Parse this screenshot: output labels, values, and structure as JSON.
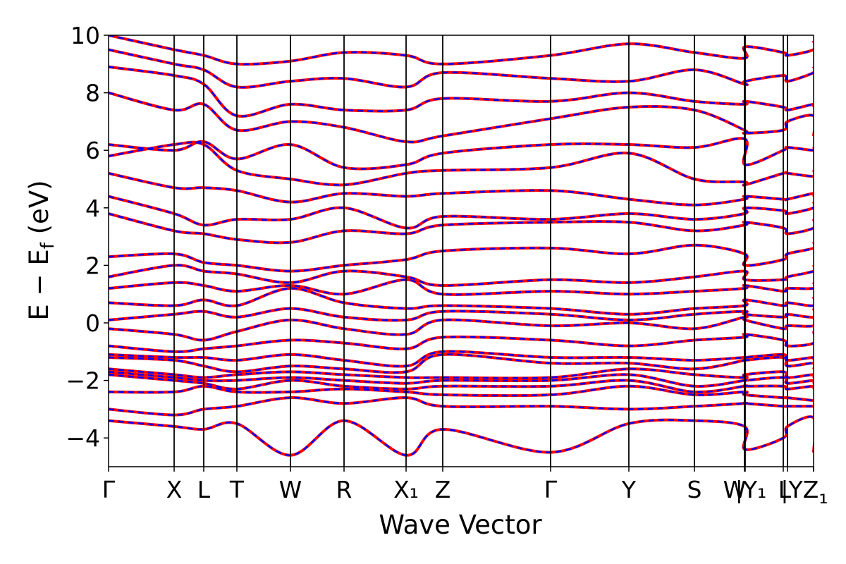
{
  "chart_data": {
    "type": "line",
    "title": "",
    "xlabel": "Wave Vector",
    "ylabel": "E − E",
    "ylabel_sub": "f",
    "ylabel_unit": " (eV)",
    "ylim": [
      -5,
      10
    ],
    "y_ticks": [
      10,
      8,
      6,
      4,
      2,
      0,
      -2,
      -4
    ],
    "y_tick_labels": [
      "10",
      "8",
      "6",
      "4",
      "2",
      "0",
      "−2",
      "−4"
    ],
    "grid": false,
    "legend": "none",
    "kpoints": [
      {
        "label": "Γ",
        "pos": 0.0
      },
      {
        "label": "X",
        "pos": 0.093
      },
      {
        "label": "L",
        "pos": 0.135
      },
      {
        "label": "T",
        "pos": 0.182
      },
      {
        "label": "W",
        "pos": 0.258
      },
      {
        "label": "R",
        "pos": 0.334
      },
      {
        "label": "X₁",
        "pos": 0.422
      },
      {
        "label": "Z",
        "pos": 0.474
      },
      {
        "label": "Γ",
        "pos": 0.627
      },
      {
        "label": "Y",
        "pos": 0.738
      },
      {
        "label": "S",
        "pos": 0.831
      },
      {
        "label": "W",
        "pos": 0.902
      },
      {
        "label": "|Y₁",
        "pos": 0.903
      },
      {
        "label": "L",
        "pos": 0.957
      },
      {
        "label": "|Y",
        "pos": 0.963
      },
      {
        "label": "Z",
        "pos": 1.0
      },
      {
        "label": "₁",
        "pos": 1.0
      }
    ],
    "series": [
      {
        "color": "#ff0000",
        "style": "solid",
        "bands": [
          [
            -3.4,
            -3.6,
            -3.7,
            -3.5,
            -4.6,
            -3.4,
            -4.6,
            -3.7,
            -4.5,
            -3.5,
            -3.4,
            -3.6,
            -4.4,
            -4.0,
            -3.6,
            -3.3,
            -4.5
          ],
          [
            -3.0,
            -3.2,
            -3.0,
            -2.9,
            -2.6,
            -2.8,
            -2.6,
            -2.9,
            -2.9,
            -3.0,
            -2.9,
            -2.8,
            -2.8,
            -2.9,
            -2.9,
            -2.9,
            -2.9
          ],
          [
            -2.4,
            -2.4,
            -2.2,
            -2.4,
            -2.4,
            -2.3,
            -2.4,
            -2.5,
            -2.5,
            -2.2,
            -2.5,
            -2.4,
            -2.5,
            -2.6,
            -2.6,
            -2.7,
            -2.7
          ],
          [
            -1.8,
            -2.0,
            -2.1,
            -2.3,
            -2.0,
            -2.2,
            -2.3,
            -2.2,
            -2.2,
            -2.0,
            -2.4,
            -2.2,
            -2.2,
            -2.2,
            -2.3,
            -2.2,
            -2.3
          ],
          [
            -1.7,
            -1.9,
            -2.0,
            -2.0,
            -1.9,
            -2.0,
            -2.1,
            -2.0,
            -2.0,
            -1.8,
            -2.2,
            -2.0,
            -2.0,
            -1.9,
            -2.1,
            -2.0,
            -2.1
          ],
          [
            -1.6,
            -1.8,
            -1.9,
            -1.8,
            -1.7,
            -1.8,
            -1.9,
            -1.9,
            -1.9,
            -1.6,
            -1.8,
            -1.9,
            -1.8,
            -1.7,
            -1.9,
            -1.8,
            -1.9
          ],
          [
            -1.2,
            -1.3,
            -1.5,
            -1.7,
            -1.5,
            -1.6,
            -1.7,
            -1.1,
            -1.4,
            -1.4,
            -1.6,
            -1.3,
            -1.3,
            -1.2,
            -1.5,
            -1.4,
            -1.6
          ],
          [
            -1.1,
            -1.2,
            -1.2,
            -1.3,
            -1.1,
            -1.3,
            -1.5,
            -1.0,
            -1.2,
            -1.2,
            -1.3,
            -1.2,
            -1.2,
            -1.1,
            -1.3,
            -1.2,
            -1.3
          ],
          [
            -0.8,
            -1.0,
            -0.9,
            -0.8,
            -0.6,
            -0.7,
            -0.9,
            -0.5,
            -0.6,
            -0.8,
            -0.6,
            -0.5,
            -0.4,
            -0.6,
            -0.8,
            -0.7,
            -0.3
          ],
          [
            -0.2,
            -0.4,
            -0.6,
            -0.3,
            0.1,
            -0.2,
            -0.4,
            0.1,
            -0.1,
            0.0,
            -0.2,
            0.2,
            0.1,
            -0.2,
            -0.1,
            -0.1,
            0.2
          ],
          [
            0.1,
            0.3,
            0.4,
            0.2,
            0.5,
            0.2,
            0.1,
            0.4,
            0.3,
            0.1,
            0.3,
            0.4,
            0.3,
            0.2,
            0.3,
            0.2,
            0.5
          ],
          [
            0.7,
            0.6,
            0.8,
            0.6,
            1.2,
            0.7,
            0.5,
            0.6,
            0.5,
            0.3,
            0.5,
            0.6,
            0.8,
            0.6,
            0.7,
            0.6,
            0.9
          ],
          [
            1.2,
            1.4,
            1.3,
            1.1,
            1.3,
            1.0,
            1.5,
            1.0,
            1.1,
            1.0,
            1.1,
            1.2,
            1.3,
            1.1,
            1.2,
            1.2,
            1.4
          ],
          [
            1.6,
            2.0,
            1.8,
            1.7,
            1.4,
            1.8,
            1.6,
            1.3,
            1.5,
            1.4,
            1.6,
            1.8,
            1.5,
            1.5,
            1.6,
            1.8,
            2.0
          ],
          [
            2.3,
            2.4,
            2.1,
            2.0,
            1.8,
            2.0,
            2.2,
            2.5,
            2.6,
            2.4,
            2.7,
            2.4,
            2.0,
            2.2,
            2.4,
            2.6,
            2.8
          ],
          [
            3.8,
            3.2,
            3.1,
            2.9,
            2.8,
            3.2,
            3.1,
            3.4,
            3.5,
            3.5,
            3.2,
            3.4,
            3.5,
            3.3,
            3.1,
            3.3,
            3.6
          ],
          [
            4.4,
            3.8,
            3.4,
            3.6,
            3.6,
            4.0,
            3.3,
            3.7,
            3.6,
            3.8,
            3.6,
            3.8,
            4.0,
            3.9,
            3.8,
            4.0,
            4.2
          ],
          [
            5.2,
            4.7,
            4.7,
            4.6,
            4.2,
            4.5,
            4.4,
            4.5,
            4.6,
            4.3,
            4.1,
            4.3,
            4.4,
            4.3,
            4.3,
            4.5,
            4.4
          ],
          [
            5.8,
            6.2,
            6.2,
            5.3,
            5.0,
            4.8,
            5.2,
            5.3,
            5.4,
            5.9,
            5.0,
            4.9,
            4.8,
            5.2,
            5.2,
            5.1,
            5.3
          ],
          [
            6.2,
            6.0,
            6.3,
            5.7,
            6.2,
            5.4,
            5.5,
            5.9,
            6.2,
            6.2,
            6.1,
            6.4,
            5.5,
            6.0,
            6.1,
            6.0,
            6.1
          ],
          [
            8.0,
            7.4,
            7.6,
            6.7,
            7.0,
            6.8,
            6.3,
            6.5,
            7.1,
            7.5,
            7.4,
            6.7,
            6.6,
            6.7,
            7.0,
            7.2,
            6.5
          ],
          [
            8.9,
            8.6,
            8.3,
            7.2,
            7.6,
            7.4,
            7.4,
            7.8,
            7.7,
            8.0,
            7.7,
            7.6,
            7.7,
            7.5,
            7.4,
            7.6,
            7.5
          ],
          [
            9.5,
            9.0,
            8.8,
            8.2,
            8.4,
            8.5,
            8.2,
            8.7,
            8.5,
            8.4,
            8.8,
            8.3,
            8.4,
            8.6,
            8.4,
            8.7,
            8.9
          ],
          [
            10.0,
            9.5,
            9.3,
            9.0,
            9.1,
            9.4,
            9.3,
            9.0,
            9.3,
            9.7,
            9.4,
            9.2,
            9.6,
            9.4,
            9.3,
            9.5,
            9.8
          ]
        ]
      },
      {
        "color": "#0000ff",
        "style": "dashed",
        "bands": [
          [
            -3.4,
            -3.6,
            -3.7,
            -3.5,
            -4.6,
            -3.4,
            -4.6,
            -3.7,
            -4.5,
            -3.5,
            -3.4,
            -3.6,
            -4.4,
            -4.0,
            -3.6,
            -3.3,
            -4.5
          ],
          [
            -3.0,
            -3.2,
            -3.0,
            -2.9,
            -2.6,
            -2.8,
            -2.6,
            -2.9,
            -2.9,
            -3.0,
            -2.9,
            -2.8,
            -2.8,
            -2.9,
            -2.9,
            -2.9,
            -2.9
          ],
          [
            -2.4,
            -2.4,
            -2.2,
            -2.4,
            -2.4,
            -2.3,
            -2.4,
            -2.5,
            -2.5,
            -2.2,
            -2.5,
            -2.4,
            -2.5,
            -2.6,
            -2.6,
            -2.7,
            -2.7
          ],
          [
            -1.8,
            -2.0,
            -2.1,
            -2.3,
            -2.0,
            -2.2,
            -2.3,
            -2.2,
            -2.2,
            -2.0,
            -2.4,
            -2.2,
            -2.2,
            -2.2,
            -2.3,
            -2.2,
            -2.3
          ],
          [
            -1.7,
            -1.9,
            -2.0,
            -2.0,
            -1.9,
            -2.0,
            -2.1,
            -2.0,
            -2.0,
            -1.8,
            -2.2,
            -2.0,
            -2.0,
            -1.9,
            -2.1,
            -2.0,
            -2.1
          ],
          [
            -1.6,
            -1.8,
            -1.9,
            -1.8,
            -1.7,
            -1.8,
            -1.9,
            -1.9,
            -1.9,
            -1.6,
            -1.8,
            -1.9,
            -1.8,
            -1.7,
            -1.9,
            -1.8,
            -1.9
          ],
          [
            -1.2,
            -1.3,
            -1.5,
            -1.7,
            -1.5,
            -1.6,
            -1.7,
            -1.1,
            -1.4,
            -1.4,
            -1.6,
            -1.3,
            -1.3,
            -1.2,
            -1.5,
            -1.4,
            -1.6
          ],
          [
            -1.1,
            -1.2,
            -1.2,
            -1.3,
            -1.1,
            -1.3,
            -1.5,
            -1.0,
            -1.2,
            -1.2,
            -1.3,
            -1.2,
            -1.2,
            -1.1,
            -1.3,
            -1.2,
            -1.3
          ],
          [
            -0.8,
            -1.0,
            -0.9,
            -0.8,
            -0.6,
            -0.7,
            -0.9,
            -0.5,
            -0.6,
            -0.8,
            -0.6,
            -0.5,
            -0.4,
            -0.6,
            -0.8,
            -0.7,
            -0.3
          ],
          [
            -0.2,
            -0.4,
            -0.6,
            -0.3,
            0.1,
            -0.2,
            -0.4,
            0.1,
            -0.1,
            0.0,
            -0.2,
            0.2,
            0.1,
            -0.2,
            -0.1,
            -0.1,
            0.2
          ],
          [
            0.1,
            0.3,
            0.4,
            0.2,
            0.5,
            0.2,
            0.1,
            0.4,
            0.3,
            0.1,
            0.3,
            0.4,
            0.3,
            0.2,
            0.3,
            0.2,
            0.5
          ],
          [
            0.7,
            0.6,
            0.8,
            0.6,
            1.2,
            0.7,
            0.5,
            0.6,
            0.5,
            0.3,
            0.5,
            0.6,
            0.8,
            0.6,
            0.7,
            0.6,
            0.9
          ],
          [
            1.2,
            1.4,
            1.3,
            1.1,
            1.3,
            1.0,
            1.5,
            1.0,
            1.1,
            1.0,
            1.1,
            1.2,
            1.3,
            1.1,
            1.2,
            1.2,
            1.4
          ],
          [
            1.6,
            2.0,
            1.8,
            1.7,
            1.4,
            1.8,
            1.6,
            1.3,
            1.5,
            1.4,
            1.6,
            1.8,
            1.5,
            1.5,
            1.6,
            1.8,
            2.0
          ],
          [
            2.3,
            2.4,
            2.1,
            2.0,
            1.8,
            2.0,
            2.2,
            2.5,
            2.6,
            2.4,
            2.7,
            2.4,
            2.0,
            2.2,
            2.4,
            2.6,
            2.8
          ],
          [
            3.8,
            3.2,
            3.1,
            2.9,
            2.8,
            3.2,
            3.1,
            3.4,
            3.5,
            3.5,
            3.2,
            3.4,
            3.5,
            3.3,
            3.1,
            3.3,
            3.6
          ],
          [
            4.4,
            3.8,
            3.4,
            3.6,
            3.6,
            4.0,
            3.3,
            3.7,
            3.6,
            3.8,
            3.6,
            3.8,
            4.0,
            3.9,
            3.8,
            4.0,
            4.2
          ],
          [
            5.2,
            4.7,
            4.7,
            4.6,
            4.2,
            4.5,
            4.4,
            4.5,
            4.6,
            4.3,
            4.1,
            4.3,
            4.4,
            4.3,
            4.3,
            4.5,
            4.4
          ],
          [
            5.8,
            6.2,
            6.2,
            5.3,
            5.0,
            4.8,
            5.2,
            5.3,
            5.4,
            5.9,
            5.0,
            4.9,
            4.8,
            5.2,
            5.2,
            5.1,
            5.3
          ],
          [
            6.2,
            6.0,
            6.3,
            5.7,
            6.2,
            5.4,
            5.5,
            5.9,
            6.2,
            6.2,
            6.1,
            6.4,
            5.5,
            6.0,
            6.1,
            6.0,
            6.1
          ],
          [
            8.0,
            7.4,
            7.6,
            6.7,
            7.0,
            6.8,
            6.3,
            6.5,
            7.1,
            7.5,
            7.4,
            6.7,
            6.6,
            6.7,
            7.0,
            7.2,
            6.5
          ],
          [
            8.9,
            8.6,
            8.3,
            7.2,
            7.6,
            7.4,
            7.4,
            7.8,
            7.7,
            8.0,
            7.7,
            7.6,
            7.7,
            7.5,
            7.4,
            7.6,
            7.5
          ],
          [
            9.5,
            9.0,
            8.8,
            8.2,
            8.4,
            8.5,
            8.2,
            8.7,
            8.5,
            8.4,
            8.8,
            8.3,
            8.4,
            8.6,
            8.4,
            8.7,
            8.9
          ],
          [
            10.0,
            9.5,
            9.3,
            9.0,
            9.1,
            9.4,
            9.3,
            9.0,
            9.3,
            9.7,
            9.4,
            9.2,
            9.6,
            9.4,
            9.3,
            9.5,
            9.8
          ]
        ]
      }
    ]
  }
}
